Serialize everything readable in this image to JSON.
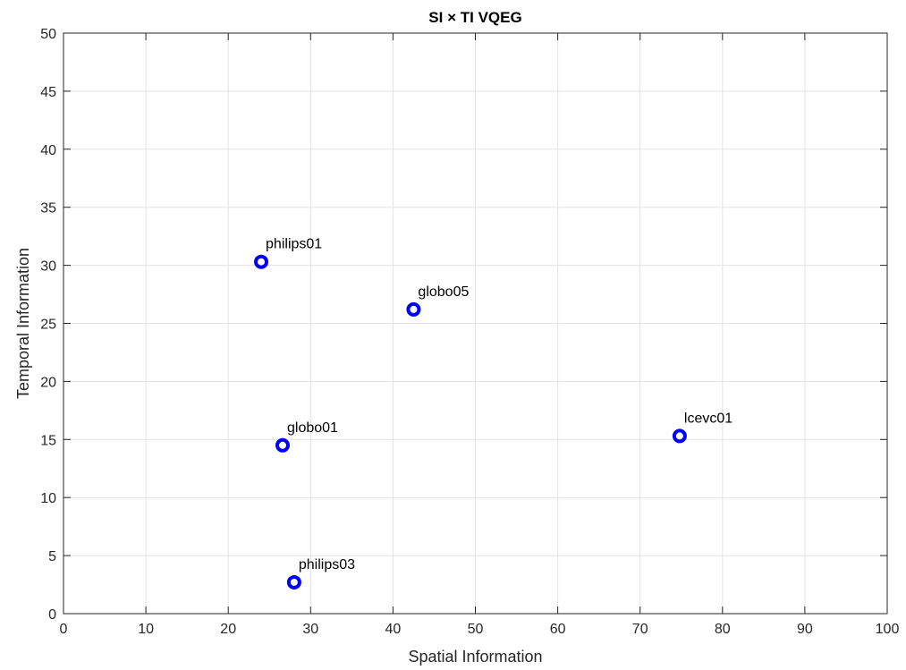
{
  "chart_data": {
    "type": "scatter",
    "title": "SI × TI VQEG",
    "xlabel": "Spatial Information",
    "ylabel": "Temporal Information",
    "xlim": [
      0,
      100
    ],
    "ylim": [
      0,
      50
    ],
    "xticks": [
      0,
      10,
      20,
      30,
      40,
      50,
      60,
      70,
      80,
      90,
      100
    ],
    "yticks": [
      0,
      5,
      10,
      15,
      20,
      25,
      30,
      35,
      40,
      45,
      50
    ],
    "grid": true,
    "marker": "circle",
    "marker_color": "#0000ff",
    "points": [
      {
        "label": "philips01",
        "x": 24.0,
        "y": 30.3
      },
      {
        "label": "globo05",
        "x": 42.5,
        "y": 26.2
      },
      {
        "label": "globo01",
        "x": 26.6,
        "y": 14.5
      },
      {
        "label": "lcevc01",
        "x": 74.8,
        "y": 15.3
      },
      {
        "label": "philips03",
        "x": 28.0,
        "y": 2.7
      }
    ]
  }
}
